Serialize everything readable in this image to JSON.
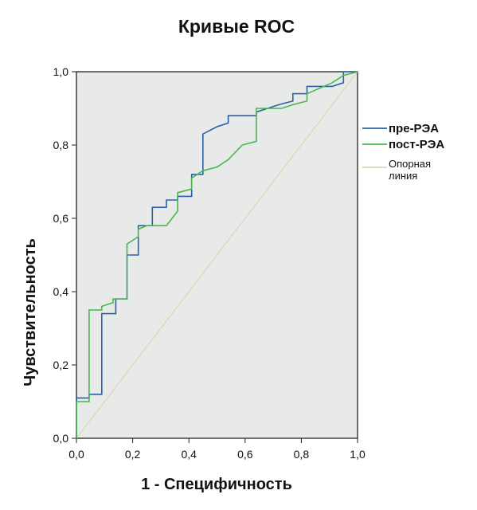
{
  "chart_data": {
    "type": "line",
    "title": "Кривые ROC",
    "xlabel": "1 - Специфичность",
    "ylabel": "Чувствительность",
    "xlim": [
      0,
      1
    ],
    "ylim": [
      0,
      1
    ],
    "grid": false,
    "legend_position": "right",
    "x_ticks": [
      "0,0",
      "0,2",
      "0,4",
      "0,6",
      "0,8",
      "1,0"
    ],
    "y_ticks": [
      "0,0",
      "0,2",
      "0,4",
      "0,6",
      "0,8",
      "1,0"
    ],
    "colors": {
      "plot_background": "#e8eaea",
      "pre": "#2b5fa8",
      "post": "#47b84a",
      "reference": "#dcd8b0"
    },
    "series": [
      {
        "name": "пре-РЭА",
        "points": [
          [
            0.0,
            0.0
          ],
          [
            0.0,
            0.11
          ],
          [
            0.045,
            0.11
          ],
          [
            0.045,
            0.12
          ],
          [
            0.09,
            0.12
          ],
          [
            0.09,
            0.34
          ],
          [
            0.14,
            0.34
          ],
          [
            0.14,
            0.38
          ],
          [
            0.18,
            0.38
          ],
          [
            0.18,
            0.5
          ],
          [
            0.22,
            0.5
          ],
          [
            0.22,
            0.58
          ],
          [
            0.27,
            0.58
          ],
          [
            0.27,
            0.63
          ],
          [
            0.32,
            0.63
          ],
          [
            0.32,
            0.65
          ],
          [
            0.36,
            0.65
          ],
          [
            0.36,
            0.66
          ],
          [
            0.41,
            0.66
          ],
          [
            0.41,
            0.72
          ],
          [
            0.45,
            0.72
          ],
          [
            0.45,
            0.83
          ],
          [
            0.5,
            0.85
          ],
          [
            0.54,
            0.86
          ],
          [
            0.54,
            0.88
          ],
          [
            0.64,
            0.88
          ],
          [
            0.64,
            0.89
          ],
          [
            0.68,
            0.9
          ],
          [
            0.72,
            0.91
          ],
          [
            0.77,
            0.92
          ],
          [
            0.77,
            0.94
          ],
          [
            0.82,
            0.94
          ],
          [
            0.82,
            0.96
          ],
          [
            0.91,
            0.96
          ],
          [
            0.95,
            0.97
          ],
          [
            0.95,
            1.0
          ],
          [
            1.0,
            1.0
          ]
        ]
      },
      {
        "name": "пост-РЭА",
        "points": [
          [
            0.0,
            0.0
          ],
          [
            0.0,
            0.1
          ],
          [
            0.045,
            0.1
          ],
          [
            0.045,
            0.35
          ],
          [
            0.09,
            0.35
          ],
          [
            0.09,
            0.36
          ],
          [
            0.13,
            0.37
          ],
          [
            0.13,
            0.38
          ],
          [
            0.18,
            0.38
          ],
          [
            0.18,
            0.53
          ],
          [
            0.22,
            0.55
          ],
          [
            0.22,
            0.57
          ],
          [
            0.25,
            0.58
          ],
          [
            0.32,
            0.58
          ],
          [
            0.36,
            0.62
          ],
          [
            0.36,
            0.67
          ],
          [
            0.41,
            0.68
          ],
          [
            0.41,
            0.71
          ],
          [
            0.45,
            0.73
          ],
          [
            0.5,
            0.74
          ],
          [
            0.54,
            0.76
          ],
          [
            0.59,
            0.8
          ],
          [
            0.64,
            0.81
          ],
          [
            0.64,
            0.9
          ],
          [
            0.73,
            0.9
          ],
          [
            0.77,
            0.91
          ],
          [
            0.82,
            0.92
          ],
          [
            0.82,
            0.94
          ],
          [
            0.91,
            0.97
          ],
          [
            0.95,
            0.99
          ],
          [
            1.0,
            1.0
          ]
        ]
      },
      {
        "name": "Опорная линия",
        "points": [
          [
            0.0,
            0.0
          ],
          [
            1.0,
            1.0
          ]
        ]
      }
    ]
  }
}
